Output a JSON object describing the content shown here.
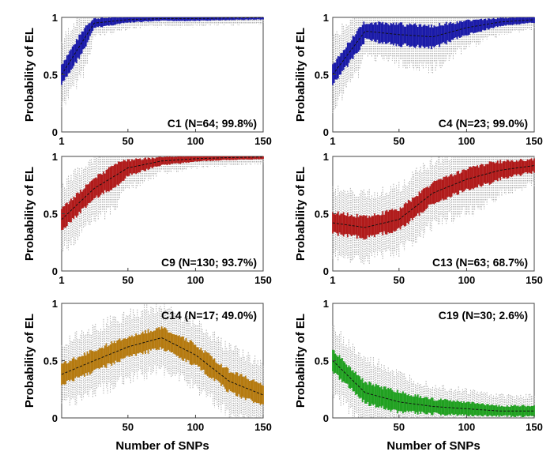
{
  "figure": {
    "xlabel": "Number of SNPs"
  },
  "chart_data": [
    {
      "type": "box",
      "id": "C1",
      "title": "C1 (N=64; 99.8%)",
      "ylabel": "Probability of EL",
      "xlabel": "",
      "color": "#1a1aa8",
      "xlim": [
        1,
        150
      ],
      "ylim": [
        0,
        1
      ],
      "xticks": [
        1,
        50,
        100,
        150
      ],
      "xtick_labels": [
        "1",
        "50",
        "100",
        "150"
      ],
      "yticks": [
        0,
        0.5,
        1
      ],
      "ytick_labels": [
        "0",
        "0.5",
        "1"
      ],
      "x": [
        1,
        25,
        50,
        75,
        100,
        125,
        150
      ],
      "median": [
        0.5,
        0.95,
        0.98,
        0.99,
        0.99,
        0.995,
        0.998
      ]
    },
    {
      "type": "box",
      "id": "C4",
      "title": "C4 (N=23; 99.0%)",
      "ylabel": "Probability of EL",
      "xlabel": "",
      "color": "#1a1aa8",
      "xlim": [
        1,
        150
      ],
      "ylim": [
        0,
        1
      ],
      "xticks": [
        1,
        50,
        100,
        150
      ],
      "xtick_labels": [
        "1",
        "50",
        "100",
        "150"
      ],
      "yticks": [
        0,
        0.5,
        1
      ],
      "ytick_labels": [
        "0",
        "0.5",
        "1"
      ],
      "x": [
        1,
        25,
        50,
        75,
        100,
        125,
        150
      ],
      "median": [
        0.5,
        0.88,
        0.85,
        0.83,
        0.91,
        0.96,
        0.98
      ]
    },
    {
      "type": "box",
      "id": "C9",
      "title": "C9 (N=130; 93.7%)",
      "ylabel": "Probability of EL",
      "xlabel": "",
      "color": "#b01a1a",
      "xlim": [
        1,
        150
      ],
      "ylim": [
        0,
        1
      ],
      "xticks": [
        1,
        50,
        100,
        150
      ],
      "xtick_labels": [
        "1",
        "50",
        "100",
        "150"
      ],
      "yticks": [
        0,
        0.5,
        1
      ],
      "ytick_labels": [
        "0",
        "0.5",
        "1"
      ],
      "x": [
        1,
        25,
        50,
        75,
        100,
        125,
        150
      ],
      "median": [
        0.45,
        0.72,
        0.9,
        0.96,
        0.98,
        0.99,
        0.995
      ]
    },
    {
      "type": "box",
      "id": "C13",
      "title": "C13 (N=63; 68.7%)",
      "ylabel": "Probability of EL",
      "xlabel": "",
      "color": "#b01a1a",
      "xlim": [
        1,
        150
      ],
      "ylim": [
        0,
        1
      ],
      "xticks": [
        1,
        50,
        100,
        150
      ],
      "xtick_labels": [
        "1",
        "50",
        "100",
        "150"
      ],
      "yticks": [
        0,
        0.5,
        1
      ],
      "ytick_labels": [
        "0",
        "0.5",
        "1"
      ],
      "x": [
        1,
        25,
        50,
        75,
        100,
        125,
        150
      ],
      "median": [
        0.42,
        0.38,
        0.45,
        0.68,
        0.8,
        0.88,
        0.92
      ]
    },
    {
      "type": "box",
      "id": "C14",
      "title": "C14 (N=17; 49.0%)",
      "ylabel": "Probability of EL",
      "xlabel": "Number of SNPs",
      "color": "#b57a10",
      "xlim": [
        1,
        150
      ],
      "ylim": [
        0,
        1
      ],
      "xticks": [
        1,
        50,
        100,
        150
      ],
      "xtick_labels": [
        "",
        "50",
        "100",
        "150"
      ],
      "yticks": [
        0,
        0.5,
        1
      ],
      "ytick_labels": [
        "0",
        "0.5",
        "1"
      ],
      "x": [
        1,
        25,
        50,
        75,
        100,
        125,
        150
      ],
      "median": [
        0.38,
        0.5,
        0.62,
        0.7,
        0.55,
        0.32,
        0.2
      ]
    },
    {
      "type": "box",
      "id": "C19",
      "title": "C19  (N=30;  2.6%)",
      "ylabel": "Probability of EL",
      "xlabel": "Number of SNPs",
      "color": "#20a020",
      "xlim": [
        1,
        150
      ],
      "ylim": [
        0,
        1
      ],
      "xticks": [
        1,
        50,
        100,
        150
      ],
      "xtick_labels": [
        "",
        "50",
        "100",
        "150"
      ],
      "yticks": [
        0,
        0.5,
        1
      ],
      "ytick_labels": [
        "0",
        "0.5",
        "1"
      ],
      "x": [
        1,
        25,
        50,
        75,
        100,
        125,
        150
      ],
      "median": [
        0.5,
        0.22,
        0.14,
        0.1,
        0.08,
        0.06,
        0.06
      ]
    }
  ]
}
